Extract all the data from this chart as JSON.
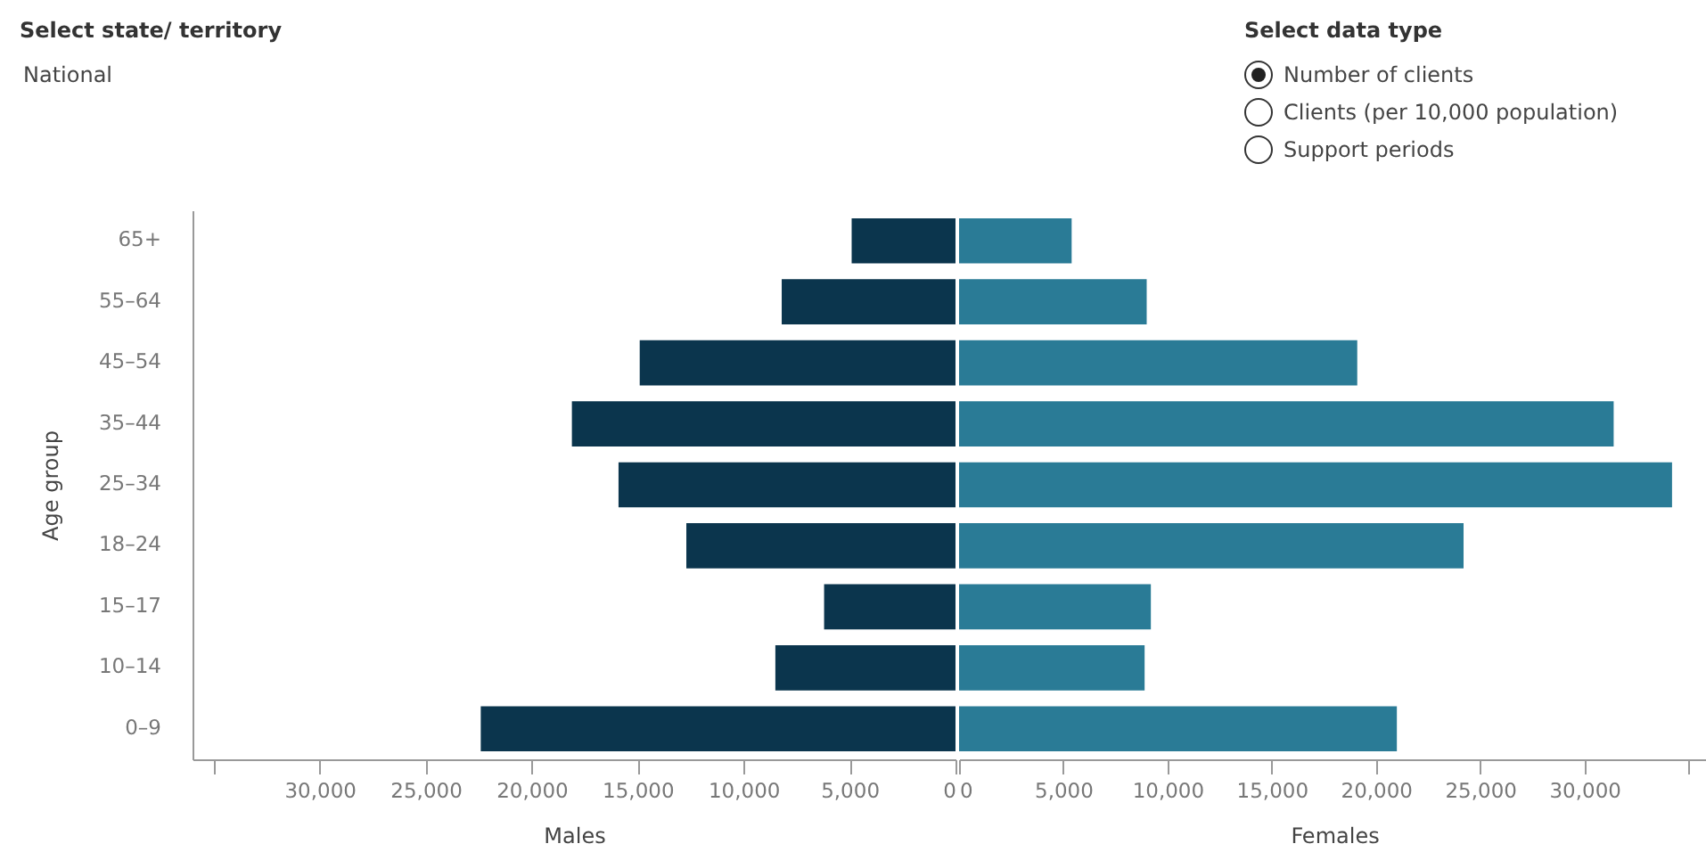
{
  "chart_data": [
    {
      "type": "bar",
      "orientation": "horizontal",
      "xlabel": "Males",
      "ylabel": "Age group",
      "categories": [
        "65+",
        "55–64",
        "45–54",
        "35–44",
        "25–34",
        "18–24",
        "15–17",
        "10–14",
        "0–9"
      ],
      "values": [
        4900,
        8200,
        14900,
        18100,
        15900,
        12700,
        6200,
        8500,
        22400
      ],
      "color": "#0b354d",
      "xlim": [
        36000,
        0
      ],
      "xticks": [
        {
          "value": 35000,
          "label": null
        },
        {
          "value": 30000,
          "label": "30,000"
        },
        {
          "value": 25000,
          "label": "25,000"
        },
        {
          "value": 20000,
          "label": "20,000"
        },
        {
          "value": 15000,
          "label": "15,000"
        },
        {
          "value": 10000,
          "label": "10,000"
        },
        {
          "value": 5000,
          "label": "5,000"
        },
        0
      ],
      "annotations": [
        "Select state/ territory",
        "National",
        "Select data type",
        "Number of clients",
        "Clients (per 10,000 population)",
        "Support periods"
      ]
    },
    {
      "type": "bar",
      "orientation": "horizontal",
      "xlabel": "Females",
      "categories": [
        "65+",
        "55–64",
        "45–54",
        "35–44",
        "25–34",
        "18–24",
        "15–17",
        "10–14",
        "0–9"
      ],
      "values": [
        5400,
        9000,
        19100,
        31400,
        34200,
        24200,
        9200,
        8900,
        21000
      ],
      "color": "#2a7b96",
      "xlim": [
        0,
        36000
      ],
      "xticks": [
        0,
        {
          "value": 5000,
          "label": "5,000"
        },
        {
          "value": 10000,
          "label": "10,000"
        },
        {
          "value": 15000,
          "label": "15,000"
        },
        {
          "value": 20000,
          "label": "20,000"
        },
        {
          "value": 25000,
          "label": "25,000"
        },
        {
          "value": 30000,
          "label": "30,000"
        },
        {
          "value": 35000,
          "label": null
        }
      ],
      "tick_labels": "x"
    }
  ]
}
